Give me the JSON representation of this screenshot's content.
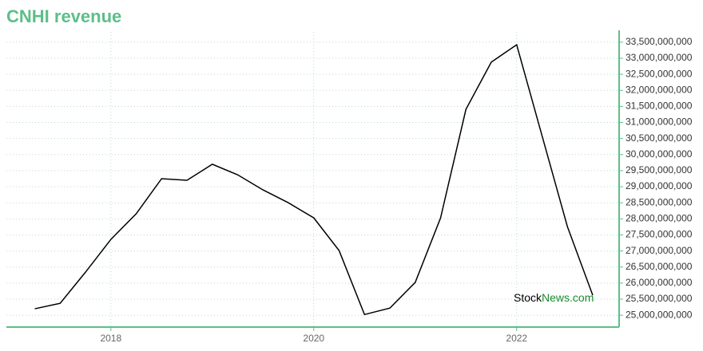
{
  "chart_data": {
    "type": "line",
    "title": "CNHI revenue",
    "x": [
      2017.25,
      2017.5,
      2017.75,
      2018,
      2018.25,
      2018.5,
      2018.75,
      2019,
      2019.25,
      2019.5,
      2019.75,
      2020,
      2020.25,
      2020.5,
      2020.75,
      2021,
      2021.25,
      2021.5,
      2021.75,
      2022,
      2022.25,
      2022.5,
      2022.75
    ],
    "series": [
      {
        "name": "Revenue",
        "color": "#000000",
        "values": [
          25200000000,
          25370000000,
          26340000000,
          27360000000,
          28160000000,
          29250000000,
          29200000000,
          29700000000,
          29370000000,
          28900000000,
          28500000000,
          28030000000,
          27010000000,
          25020000000,
          25220000000,
          26020000000,
          28030000000,
          31410000000,
          32880000000,
          33420000000,
          30590000000,
          27760000000,
          25620000000
        ]
      }
    ],
    "xlim": [
      2016.97,
      2023.01
    ],
    "xticks": [
      2018,
      2020,
      2022
    ],
    "ylim": [
      24630000000,
      33820000000
    ],
    "yticks": [
      {
        "value": 25000000000,
        "label": "25,000,000,000"
      },
      {
        "value": 25500000000,
        "label": "25,500,000,000"
      },
      {
        "value": 26000000000,
        "label": "26,000,000,000"
      },
      {
        "value": 26500000000,
        "label": "26,500,000,000"
      },
      {
        "value": 27000000000,
        "label": "27,000,000,000"
      },
      {
        "value": 27500000000,
        "label": "27,500,000,000"
      },
      {
        "value": 28000000000,
        "label": "28,000,000,000"
      },
      {
        "value": 28500000000,
        "label": "28,500,000,000"
      },
      {
        "value": 29000000000,
        "label": "29,000,000,000"
      },
      {
        "value": 29500000000,
        "label": "29,500,000,000"
      },
      {
        "value": 30000000000,
        "label": "30,000,000,000"
      },
      {
        "value": 30500000000,
        "label": "30,500,000,000"
      },
      {
        "value": 31000000000,
        "label": "31,000,000,000"
      },
      {
        "value": 31500000000,
        "label": "31,500,000,000"
      },
      {
        "value": 32000000000,
        "label": "32,000,000,000"
      },
      {
        "value": 32500000000,
        "label": "32,500,000,000"
      },
      {
        "value": 33000000000,
        "label": "33,000,000,000"
      },
      {
        "value": 33500000000,
        "label": "33,500,000,000"
      }
    ],
    "grid": true,
    "watermark": [
      "Stock",
      "News.com"
    ]
  }
}
